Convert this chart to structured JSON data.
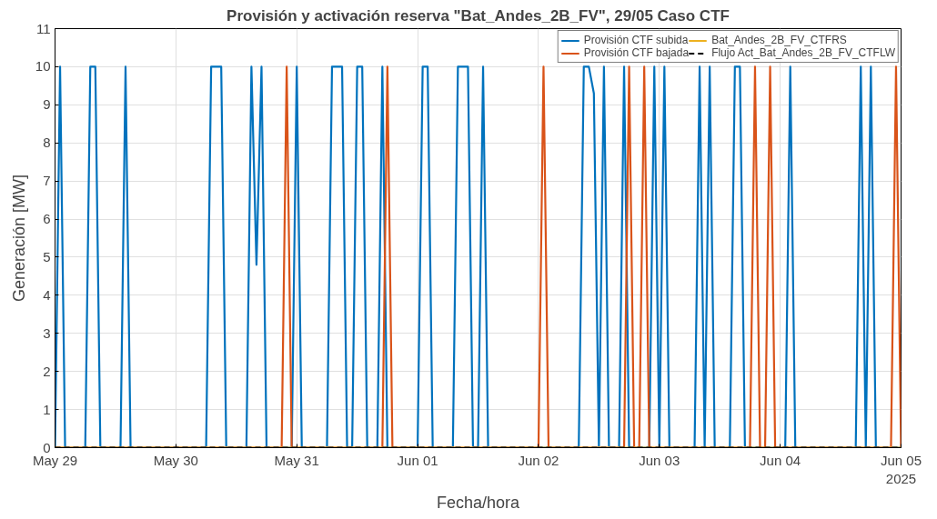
{
  "chart_data": {
    "type": "line",
    "title": "Provisión y activación reserva \"Bat_Andes_2B_FV\", 29/05 Caso CTF",
    "xlabel": "Fecha/hora",
    "ylabel": "Generación [MW]",
    "annotations": [
      "2025"
    ],
    "xlim": [
      "2025-05-29",
      "2025-06-05"
    ],
    "xticks": [
      {
        "value": "2025-05-29",
        "label": "May 29"
      },
      {
        "value": "2025-05-30",
        "label": "May 30"
      },
      {
        "value": "2025-05-31",
        "label": "May 31"
      },
      {
        "value": "2025-06-01",
        "label": "Jun 01"
      },
      {
        "value": "2025-06-02",
        "label": "Jun 02"
      },
      {
        "value": "2025-06-03",
        "label": "Jun 03"
      },
      {
        "value": "2025-06-04",
        "label": "Jun 04"
      },
      {
        "value": "2025-06-05",
        "label": "Jun 05"
      }
    ],
    "ylim": [
      0,
      11
    ],
    "yticks": [
      0,
      1,
      2,
      3,
      4,
      5,
      6,
      7,
      8,
      9,
      10,
      11
    ],
    "grid": true,
    "legend": "top right",
    "series": [
      {
        "name": "Provisión CTF subida",
        "color": "#0072bd",
        "line_style": "solid",
        "x": [
          "2025-05-29T00:00",
          "2025-05-29T01:00",
          "2025-05-29T02:00",
          "2025-05-29T06:00",
          "2025-05-29T07:00",
          "2025-05-29T08:00",
          "2025-05-29T09:00",
          "2025-05-29T13:00",
          "2025-05-29T14:00",
          "2025-05-29T15:00",
          "2025-05-30T06:00",
          "2025-05-30T07:00",
          "2025-05-30T09:00",
          "2025-05-30T10:00",
          "2025-05-30T14:00",
          "2025-05-30T15:00",
          "2025-05-30T16:00",
          "2025-05-30T17:00",
          "2025-05-30T18:00",
          "2025-05-30T23:00",
          "2025-05-31T00:00",
          "2025-05-31T01:00",
          "2025-05-31T06:00",
          "2025-05-31T07:00",
          "2025-05-31T09:00",
          "2025-05-31T10:00",
          "2025-05-31T11:00",
          "2025-05-31T12:00",
          "2025-05-31T13:00",
          "2025-05-31T14:00",
          "2025-05-31T16:00",
          "2025-05-31T17:00",
          "2025-05-31T18:00",
          "2025-06-01T00:00",
          "2025-06-01T01:00",
          "2025-06-01T02:00",
          "2025-06-01T03:00",
          "2025-06-01T07:00",
          "2025-06-01T08:00",
          "2025-06-01T10:00",
          "2025-06-01T11:00",
          "2025-06-01T12:00",
          "2025-06-01T13:00",
          "2025-06-01T14:00",
          "2025-06-02T08:00",
          "2025-06-02T09:00",
          "2025-06-02T10:00",
          "2025-06-02T11:00",
          "2025-06-02T12:00",
          "2025-06-02T13:00",
          "2025-06-02T14:00",
          "2025-06-02T16:00",
          "2025-06-02T17:00",
          "2025-06-02T18:00",
          "2025-06-02T22:00",
          "2025-06-02T23:00",
          "2025-06-03T00:00",
          "2025-06-03T01:00",
          "2025-06-03T02:00",
          "2025-06-03T07:00",
          "2025-06-03T08:00",
          "2025-06-03T09:00",
          "2025-06-03T10:00",
          "2025-06-03T11:00",
          "2025-06-03T14:00",
          "2025-06-03T15:00",
          "2025-06-03T16:00",
          "2025-06-03T17:00",
          "2025-06-04T01:00",
          "2025-06-04T02:00",
          "2025-06-04T03:00",
          "2025-06-04T15:00",
          "2025-06-04T16:00",
          "2025-06-04T17:00",
          "2025-06-04T18:00",
          "2025-06-04T19:00",
          "2025-06-05T00:00"
        ],
        "values": [
          0,
          10,
          0,
          0,
          10,
          10,
          0,
          0,
          10,
          0,
          0,
          10,
          10,
          0,
          0,
          10,
          4.8,
          10,
          0,
          0,
          10,
          0,
          0,
          10,
          10,
          0,
          0,
          10,
          10,
          0,
          0,
          10,
          0,
          0,
          10,
          10,
          0,
          0,
          10,
          10,
          0,
          0,
          10,
          0,
          0,
          10,
          10,
          9.3,
          0,
          10,
          0,
          0,
          10,
          0,
          0,
          10,
          0,
          10,
          0,
          0,
          10,
          0,
          10,
          0,
          0,
          10,
          10,
          0,
          0,
          10,
          0,
          0,
          10,
          0,
          10,
          0,
          0
        ]
      },
      {
        "name": "Provisión CTF bajada",
        "color": "#d95319",
        "line_style": "solid",
        "x": [
          "2025-05-29T00:00",
          "2025-05-30T21:00",
          "2025-05-30T22:00",
          "2025-05-30T23:00",
          "2025-05-31T17:00",
          "2025-05-31T18:00",
          "2025-05-31T19:00",
          "2025-06-02T00:00",
          "2025-06-02T01:00",
          "2025-06-02T02:00",
          "2025-06-02T17:00",
          "2025-06-02T18:00",
          "2025-06-02T19:00",
          "2025-06-02T20:00",
          "2025-06-02T21:00",
          "2025-06-02T22:00",
          "2025-06-03T18:00",
          "2025-06-03T19:00",
          "2025-06-03T20:00",
          "2025-06-03T21:00",
          "2025-06-03T22:00",
          "2025-06-03T23:00",
          "2025-06-04T22:00",
          "2025-06-04T23:00",
          "2025-06-05T00:00"
        ],
        "values": [
          0,
          0,
          10,
          0,
          0,
          10,
          0,
          0,
          10,
          0,
          0,
          10,
          0,
          0,
          10,
          0,
          0,
          10,
          0,
          0,
          10,
          0,
          0,
          10,
          0
        ]
      },
      {
        "name": "Bat_Andes_2B_FV_CTFRS",
        "color": "#edb120",
        "line_style": "solid",
        "x": [
          "2025-05-29T00:00",
          "2025-06-05T00:00"
        ],
        "values": [
          0,
          0
        ]
      },
      {
        "name": "Flujo Act_Bat_Andes_2B_FV_CTFLW",
        "color": "#000000",
        "line_style": "dashed",
        "x": [
          "2025-05-29T00:00",
          "2025-06-05T00:00"
        ],
        "values": [
          0,
          0
        ]
      }
    ]
  }
}
